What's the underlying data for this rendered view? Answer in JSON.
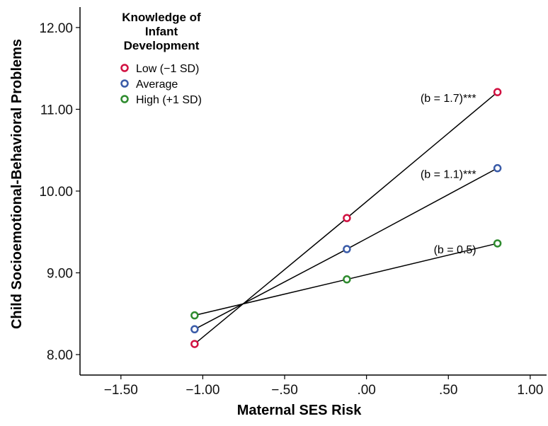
{
  "chart_data": {
    "type": "line",
    "xlabel": "Maternal SES Risk",
    "ylabel": "Child Socioemotional-Behavioral Problems",
    "xlim": [
      -1.75,
      1.1
    ],
    "ylim": [
      7.75,
      12.25
    ],
    "x_ticks": [
      -1.5,
      -1.0,
      -0.5,
      0.0,
      0.5,
      1.0
    ],
    "x_tick_labels": [
      "−1.50",
      "−1.00",
      "−.50",
      ".00",
      ".50",
      "1.00"
    ],
    "y_ticks": [
      8,
      9,
      10,
      11,
      12
    ],
    "y_tick_labels": [
      "8.00",
      "9.00",
      "10.00",
      "11.00",
      "12.00"
    ],
    "grid": false,
    "legend": {
      "title_lines": [
        "Knowledge of",
        "Infant",
        "Development"
      ],
      "placement": "top-left"
    },
    "series": [
      {
        "name": "Low (−1 SD)",
        "color": "#d11141",
        "x": [
          -1.05,
          -0.12,
          0.8
        ],
        "y": [
          8.13,
          9.67,
          11.21
        ],
        "annotation": "(b = 1.7)***"
      },
      {
        "name": "Average",
        "color": "#3a5ba8",
        "x": [
          -1.05,
          -0.12,
          0.8
        ],
        "y": [
          8.31,
          9.29,
          10.28
        ],
        "annotation": "(b = 1.1)***"
      },
      {
        "name": "High (+1 SD)",
        "color": "#2e8b2e",
        "x": [
          -1.05,
          -0.12,
          0.8
        ],
        "y": [
          8.48,
          8.92,
          9.36
        ],
        "annotation": "(b = 0.5)"
      }
    ]
  }
}
